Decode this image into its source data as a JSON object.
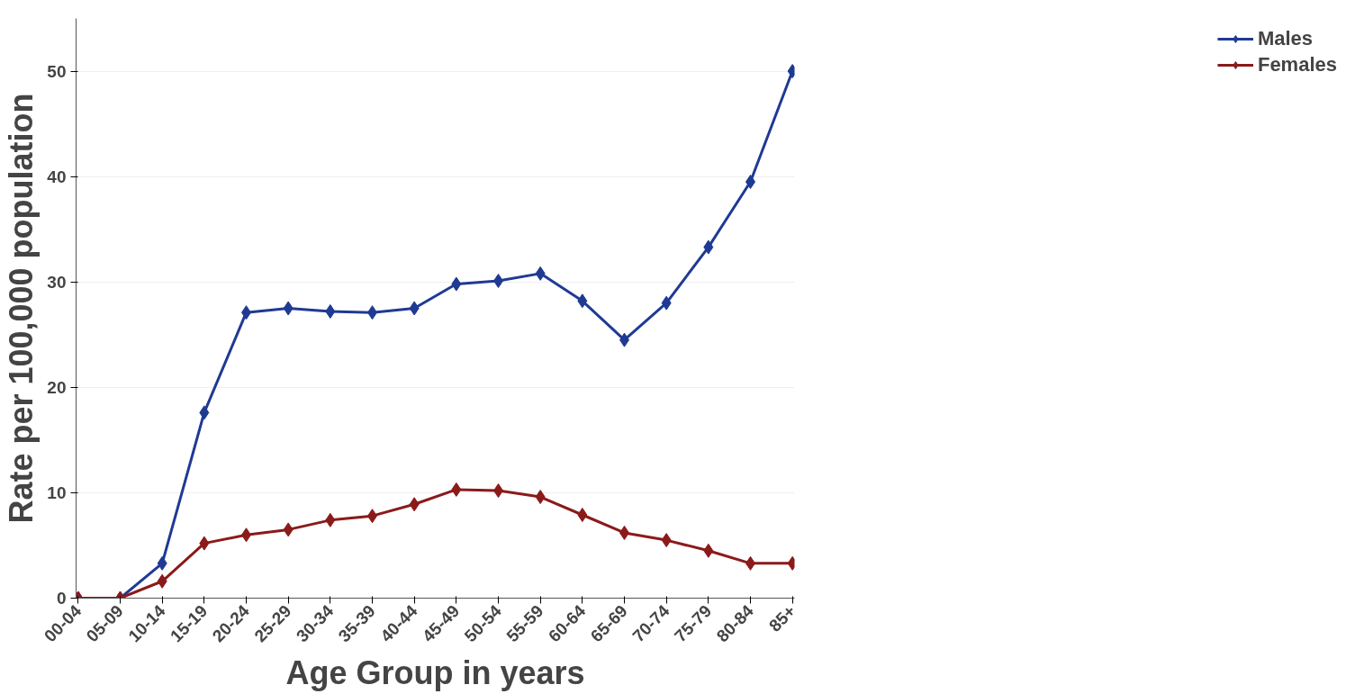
{
  "chart_data": {
    "type": "line",
    "xlabel": "Age Group in years",
    "ylabel": "Rate per 100,000 population",
    "categories": [
      "00-04",
      "05-09",
      "10-14",
      "15-19",
      "20-24",
      "25-29",
      "30-34",
      "35-39",
      "40-44",
      "45-49",
      "50-54",
      "55-59",
      "60-64",
      "65-69",
      "70-74",
      "75-79",
      "80-84",
      "85+"
    ],
    "series": [
      {
        "name": "Males",
        "color": "#1f3a93",
        "values": [
          0,
          0,
          3.3,
          17.6,
          27.1,
          27.5,
          27.2,
          27.1,
          27.5,
          29.8,
          30.1,
          30.8,
          28.2,
          24.5,
          28.0,
          33.3,
          39.5,
          50.0
        ]
      },
      {
        "name": "Females",
        "color": "#8b1a1a",
        "values": [
          0,
          0,
          1.6,
          5.2,
          6.0,
          6.5,
          7.4,
          7.8,
          8.9,
          10.3,
          10.2,
          9.6,
          7.9,
          6.2,
          5.5,
          4.5,
          3.3,
          3.3
        ]
      }
    ],
    "ylim": [
      0,
      55
    ],
    "yticks": [
      0,
      10,
      20,
      30,
      40,
      50
    ],
    "grid": "y",
    "legend": "right",
    "marker": "diamond",
    "line_style": "solid"
  }
}
